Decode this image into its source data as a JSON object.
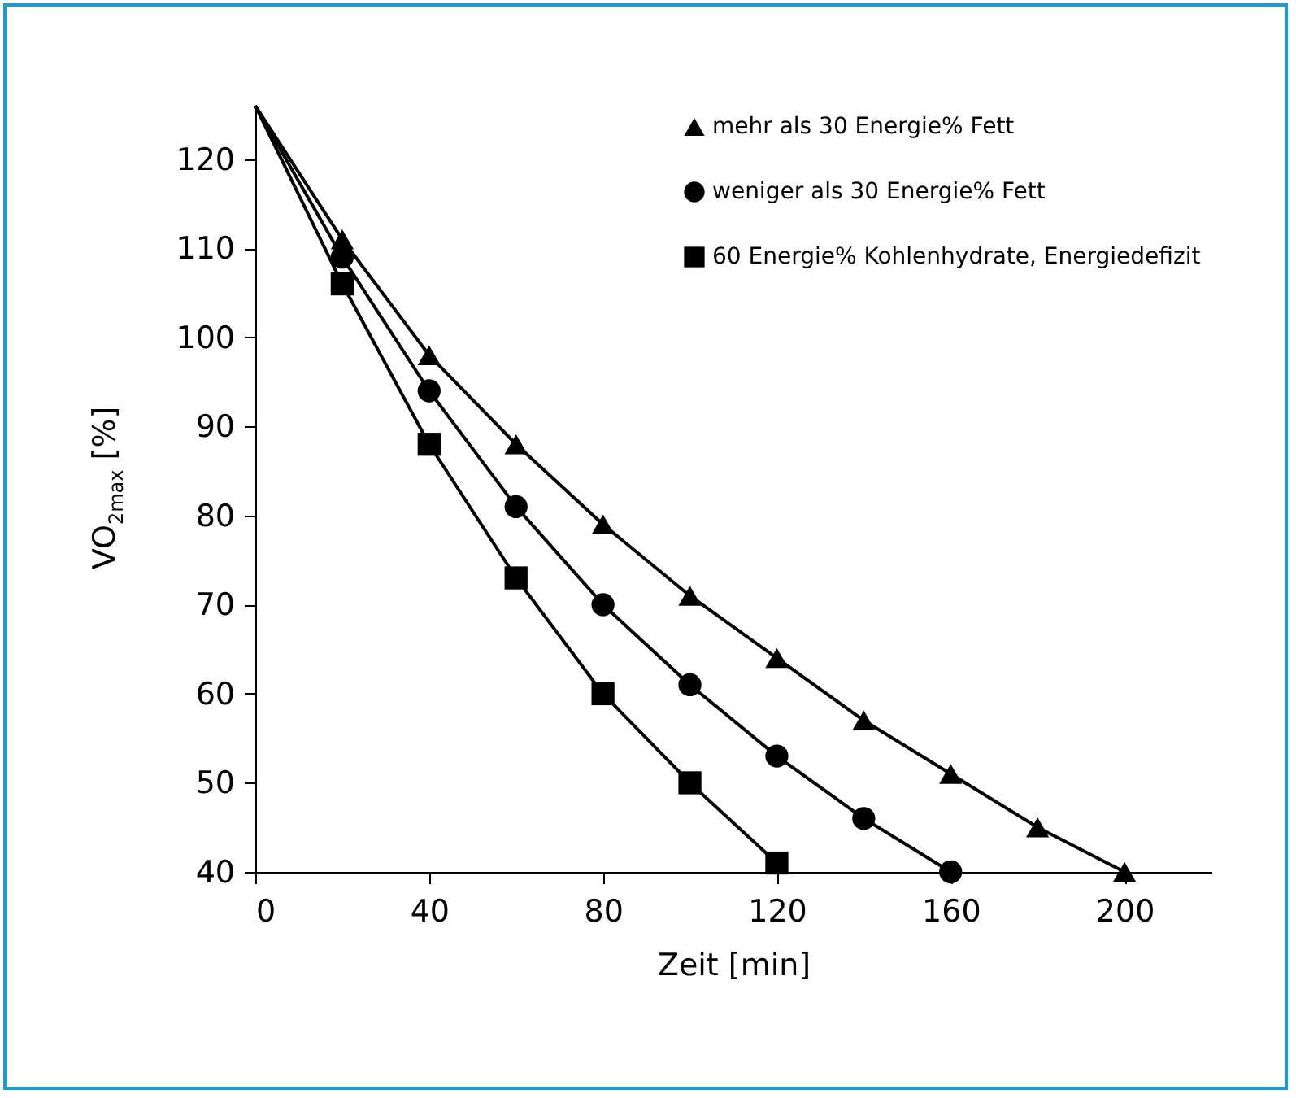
{
  "chart_data": {
    "type": "line",
    "xlabel": "Zeit [min]",
    "ylabel": "VO$_{2max}$ [%]",
    "xlim": [
      0,
      220
    ],
    "ylim": [
      40,
      126
    ],
    "xticks": [
      0,
      40,
      80,
      120,
      160,
      200
    ],
    "yticks": [
      40,
      50,
      60,
      70,
      80,
      90,
      100,
      110,
      120
    ],
    "legend": "top right",
    "grid": false,
    "series": [
      {
        "name": "mehr als 30 Energie% Fett",
        "color": "#000000",
        "marker": "triangle",
        "x": [
          0,
          20,
          40,
          60,
          80,
          100,
          120,
          140,
          160,
          180,
          200
        ],
        "values": [
          126,
          111,
          98,
          88,
          79,
          71,
          64,
          57,
          51,
          45,
          40
        ]
      },
      {
        "name": "weniger als 30 Energie% Fett",
        "color": "#000000",
        "marker": "circle",
        "x": [
          0,
          20,
          40,
          60,
          80,
          100,
          120,
          140,
          160
        ],
        "values": [
          126,
          109,
          94,
          81,
          70,
          61,
          53,
          46,
          40
        ]
      },
      {
        "name": "60 Energie% Kohlenhydrate, Energiedefizit",
        "color": "#000000",
        "marker": "square",
        "x": [
          0,
          20,
          40,
          60,
          80,
          100,
          120
        ],
        "values": [
          126,
          106,
          88,
          73,
          60,
          50,
          41
        ]
      }
    ]
  }
}
